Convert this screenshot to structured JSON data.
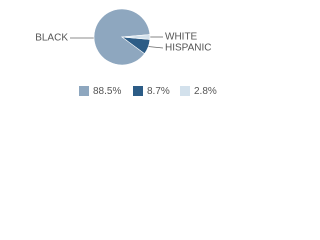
{
  "chart_data": {
    "type": "pie",
    "categories": [
      "BLACK",
      "HISPANIC",
      "WHITE"
    ],
    "values": [
      88.5,
      8.7,
      2.8
    ],
    "value_labels": [
      "88.5%",
      "8.7%",
      "2.8%"
    ],
    "colors": [
      "#8ea7bf",
      "#2c5c86",
      "#d3e1ec"
    ]
  }
}
